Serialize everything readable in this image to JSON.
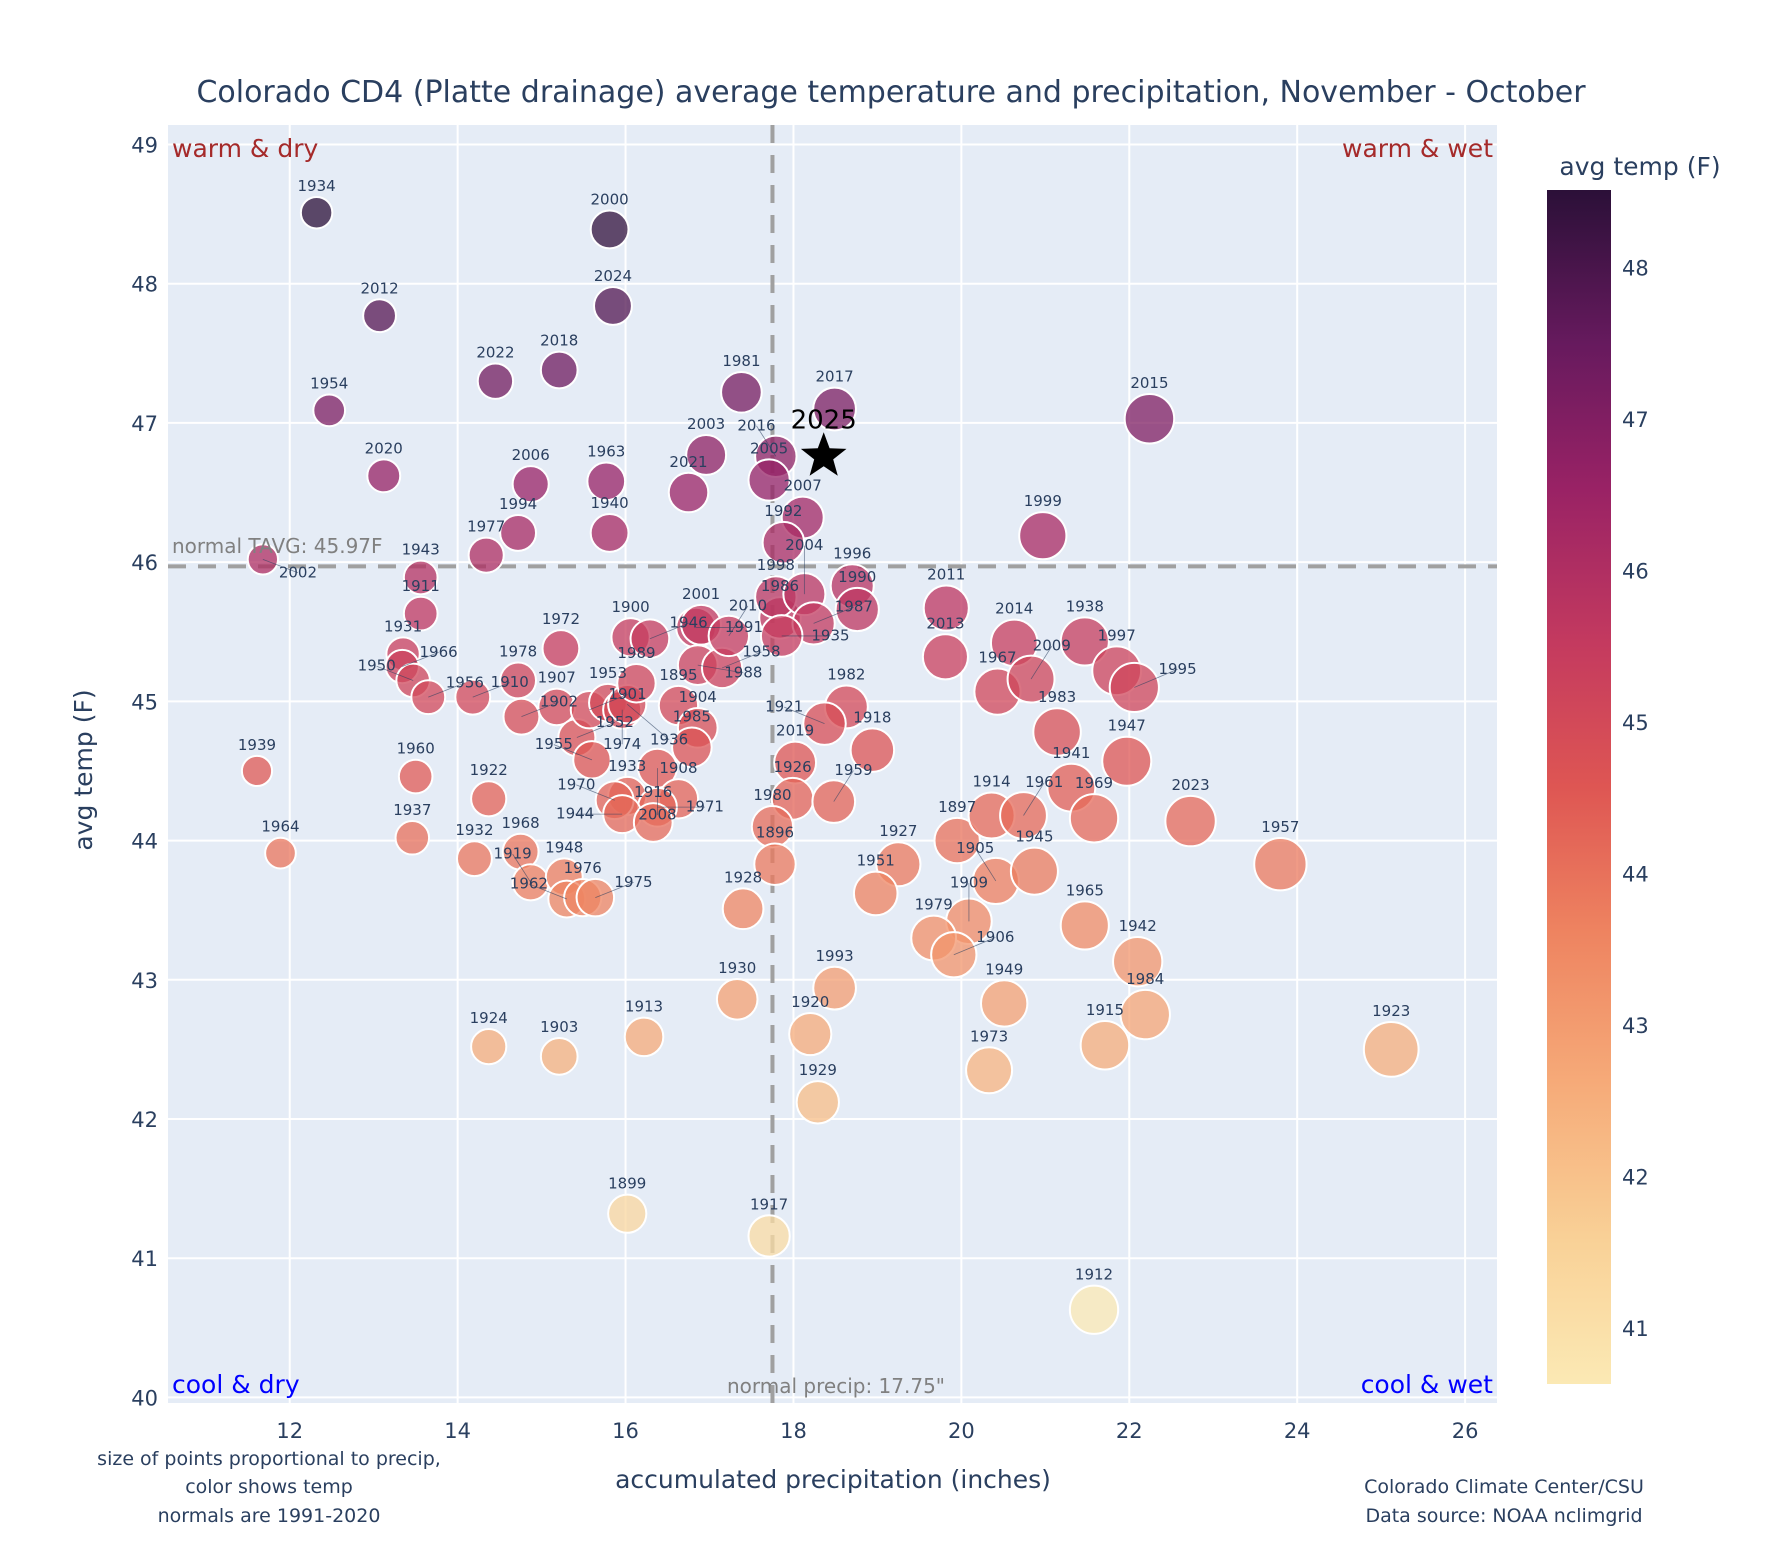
{
  "chart_data": {
    "type": "scatter",
    "title": "Colorado CD4 (Platte drainage) average temperature and precipitation, November - October",
    "xlabel": "accumulated precipitation (inches)",
    "ylabel": "avg temp (F)",
    "xlim": [
      10.55,
      26.38
    ],
    "ylim": [
      39.96,
      49.14
    ],
    "xticks": [
      12,
      14,
      16,
      18,
      20,
      22,
      24,
      26
    ],
    "yticks": [
      40,
      41,
      42,
      43,
      44,
      45,
      46,
      47,
      48,
      49
    ],
    "grid": true,
    "normals": {
      "precip": 17.75,
      "tavg": 45.97,
      "precip_label": "normal precip: 17.75\"",
      "tavg_label": "normal TAVG: 45.97F"
    },
    "quadrant_labels": {
      "top_left": "warm & dry",
      "top_right": "warm & wet",
      "bottom_left": "cool & dry",
      "bottom_right": "cool & wet"
    },
    "quadrant_colors": {
      "warm": "#a52a2a",
      "cool": "#0000ff"
    },
    "colorbar": {
      "title": "avg temp (F)",
      "range": [
        40.63,
        48.51
      ],
      "ticks": [
        41,
        42,
        43,
        44,
        45,
        46,
        47,
        48
      ],
      "colorscale": [
        [
          0.0,
          "#fbe9b4"
        ],
        [
          0.12,
          "#f9d197"
        ],
        [
          0.25,
          "#f6ab79"
        ],
        [
          0.38,
          "#ee8360"
        ],
        [
          0.5,
          "#de5653"
        ],
        [
          0.62,
          "#c43a5f"
        ],
        [
          0.75,
          "#992265"
        ],
        [
          0.87,
          "#671a5e"
        ],
        [
          1.0,
          "#2b1038"
        ]
      ]
    },
    "highlight": {
      "label": "2025",
      "precip": 18.36,
      "temp": 46.76,
      "marker": "star"
    },
    "points": [
      [
        "1934",
        12.32,
        48.51
      ],
      [
        "2000",
        15.81,
        48.39
      ],
      [
        "2012",
        13.07,
        47.77
      ],
      [
        "2024",
        15.85,
        47.84
      ],
      [
        "1954",
        12.47,
        47.09
      ],
      [
        "2022",
        14.45,
        47.3
      ],
      [
        "2018",
        15.21,
        47.38
      ],
      [
        "1981",
        17.38,
        47.22
      ],
      [
        "2017",
        18.49,
        47.1
      ],
      [
        "2015",
        22.24,
        47.03
      ],
      [
        "2020",
        13.12,
        46.62
      ],
      [
        "2006",
        14.87,
        46.56
      ],
      [
        "1963",
        15.77,
        46.58
      ],
      [
        "2003",
        16.96,
        46.77
      ],
      [
        "2021",
        16.75,
        46.5
      ],
      [
        "2016",
        17.79,
        46.76
      ],
      [
        "2005",
        17.71,
        46.59
      ],
      [
        "2007",
        18.11,
        46.32
      ],
      [
        "1992",
        17.88,
        46.14
      ],
      [
        "1999",
        20.97,
        46.19
      ],
      [
        "1994",
        14.72,
        46.21
      ],
      [
        "1940",
        15.81,
        46.21
      ],
      [
        "1977",
        14.34,
        46.05
      ],
      [
        "2002",
        11.68,
        46.02
      ],
      [
        "1943",
        13.56,
        45.89
      ],
      [
        "1911",
        13.56,
        45.63
      ],
      [
        "1931",
        13.35,
        45.34
      ],
      [
        "1966",
        13.34,
        45.25
      ],
      [
        "1950",
        13.47,
        45.15
      ],
      [
        "1956",
        13.65,
        45.03
      ],
      [
        "1910",
        14.18,
        45.03
      ],
      [
        "1978",
        14.72,
        45.15
      ],
      [
        "1902",
        14.76,
        44.89
      ],
      [
        "1972",
        15.23,
        45.38
      ],
      [
        "1907",
        15.18,
        44.96
      ],
      [
        "1952",
        15.42,
        44.74
      ],
      [
        "1955",
        15.6,
        44.58
      ],
      [
        "1901",
        15.57,
        44.94
      ],
      [
        "1953",
        15.79,
        44.99
      ],
      [
        "1974",
        15.96,
        44.94
      ],
      [
        "1936",
        16.02,
        44.98
      ],
      [
        "1989",
        16.13,
        45.13
      ],
      [
        "1900",
        16.06,
        45.46
      ],
      [
        "1946",
        16.29,
        45.45
      ],
      [
        "1991",
        16.84,
        45.53
      ],
      [
        "2001",
        16.9,
        45.55
      ],
      [
        "1988",
        16.86,
        45.26
      ],
      [
        "1958",
        17.15,
        45.24
      ],
      [
        "1895",
        16.63,
        44.97
      ],
      [
        "1904",
        16.86,
        44.81
      ],
      [
        "1985",
        16.79,
        44.67
      ],
      [
        "2008",
        16.38,
        44.52
      ],
      [
        "1908",
        16.63,
        44.3
      ],
      [
        "1930",
        17.33,
        42.86
      ],
      [
        "1933",
        16.02,
        44.32
      ],
      [
        "1970",
        15.87,
        44.29
      ],
      [
        "1971",
        16.38,
        44.24
      ],
      [
        "1944",
        15.96,
        44.19
      ],
      [
        "1916",
        16.33,
        44.13
      ],
      [
        "1986",
        17.84,
        45.6
      ],
      [
        "1998",
        17.79,
        45.75
      ],
      [
        "2004",
        18.13,
        45.77
      ],
      [
        "1987",
        18.24,
        45.56
      ],
      [
        "1935",
        17.86,
        45.47
      ],
      [
        "2010",
        17.23,
        45.47
      ],
      [
        "1996",
        18.7,
        45.83
      ],
      [
        "1990",
        18.76,
        45.66
      ],
      [
        "2011",
        19.82,
        45.67
      ],
      [
        "2013",
        19.81,
        45.32
      ],
      [
        "1982",
        18.63,
        44.96
      ],
      [
        "1918",
        18.94,
        44.65
      ],
      [
        "1921",
        18.37,
        44.84
      ],
      [
        "2019",
        18.02,
        44.56
      ],
      [
        "1926",
        17.99,
        44.3
      ],
      [
        "1959",
        18.48,
        44.28
      ],
      [
        "1980",
        17.75,
        44.1
      ],
      [
        "1896",
        17.78,
        43.83
      ],
      [
        "1928",
        17.4,
        43.51
      ],
      [
        "1927",
        19.25,
        43.83
      ],
      [
        "1951",
        18.98,
        43.62
      ],
      [
        "1897",
        19.95,
        44.0
      ],
      [
        "1914",
        20.36,
        44.18
      ],
      [
        "1961",
        20.74,
        44.18
      ],
      [
        "1905",
        20.41,
        43.71
      ],
      [
        "1945",
        20.87,
        43.78
      ],
      [
        "1909",
        20.09,
        43.42
      ],
      [
        "1979",
        19.67,
        43.3
      ],
      [
        "1906",
        19.91,
        43.18
      ],
      [
        "2014",
        20.63,
        45.42
      ],
      [
        "1967",
        20.43,
        45.07
      ],
      [
        "2009",
        20.83,
        45.16
      ],
      [
        "1938",
        21.47,
        45.43
      ],
      [
        "1997",
        21.85,
        45.22
      ],
      [
        "1995",
        22.06,
        45.1
      ],
      [
        "1983",
        21.14,
        44.78
      ],
      [
        "1947",
        21.97,
        44.57
      ],
      [
        "1941",
        21.31,
        44.38
      ],
      [
        "1969",
        21.58,
        44.16
      ],
      [
        "2023",
        22.73,
        44.14
      ],
      [
        "1957",
        23.8,
        43.83
      ],
      [
        "1965",
        21.47,
        43.39
      ],
      [
        "1942",
        22.1,
        43.13
      ],
      [
        "1984",
        22.19,
        42.75
      ],
      [
        "1915",
        21.71,
        42.53
      ],
      [
        "1949",
        20.51,
        42.83
      ],
      [
        "1973",
        20.33,
        42.35
      ],
      [
        "1923",
        25.12,
        42.5
      ],
      [
        "1993",
        18.49,
        42.94
      ],
      [
        "1920",
        18.2,
        42.61
      ],
      [
        "1929",
        18.29,
        42.12
      ],
      [
        "1913",
        16.22,
        42.59
      ],
      [
        "1924",
        14.37,
        42.52
      ],
      [
        "1903",
        15.21,
        42.45
      ],
      [
        "1899",
        16.02,
        41.32
      ],
      [
        "1917",
        17.71,
        41.16
      ],
      [
        "1912",
        21.58,
        40.63
      ],
      [
        "1939",
        11.61,
        44.5
      ],
      [
        "1964",
        11.89,
        43.91
      ],
      [
        "1960",
        13.5,
        44.46
      ],
      [
        "1937",
        13.46,
        44.02
      ],
      [
        "1922",
        14.37,
        44.3
      ],
      [
        "1932",
        14.2,
        43.87
      ],
      [
        "1968",
        14.75,
        43.92
      ],
      [
        "1919",
        14.87,
        43.7
      ],
      [
        "1948",
        15.27,
        43.74
      ],
      [
        "1962",
        15.3,
        43.58
      ],
      [
        "1976",
        15.49,
        43.59
      ],
      [
        "1975",
        15.64,
        43.59
      ]
    ]
  },
  "notes": {
    "left": [
      "size of points proportional to precip,",
      "color shows temp",
      "normals are 1991-2020"
    ],
    "right": [
      "Colorado Climate Center/CSU",
      "Data source: NOAA nclimgrid"
    ]
  }
}
